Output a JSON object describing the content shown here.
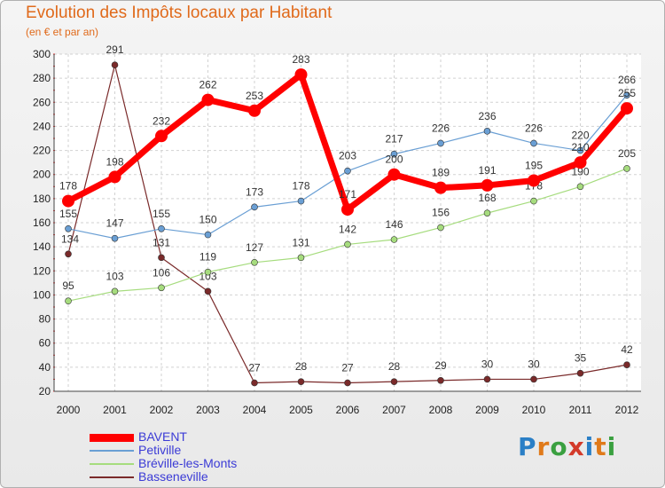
{
  "title": "Evolution des Impôts locaux par Habitant",
  "subtitle": "(en € et par an)",
  "logo": {
    "text": "Proxiti",
    "colors": [
      "#2a7fc6",
      "#e07a1a",
      "#3aa040",
      "#d33a2a",
      "#2a7fc6",
      "#e07a1a",
      "#3aa040"
    ]
  },
  "chart_data": {
    "type": "line",
    "title": "Evolution des Impôts locaux par Habitant",
    "subtitle": "(en € et par an)",
    "x": [
      "2000",
      "2001",
      "2002",
      "2003",
      "2004",
      "2005",
      "2006",
      "2007",
      "2008",
      "2009",
      "2010",
      "2011",
      "2012"
    ],
    "ylim": [
      20,
      300
    ],
    "yticks": [
      20,
      40,
      60,
      80,
      100,
      120,
      140,
      160,
      180,
      200,
      220,
      240,
      260,
      280,
      300
    ],
    "grid": true,
    "legend_position": "bottom-left",
    "series": [
      {
        "name": "BAVENT",
        "color": "#ff0000",
        "emphasis": true,
        "values": [
          178,
          198,
          232,
          262,
          253,
          283,
          171,
          200,
          189,
          191,
          195,
          210,
          255
        ]
      },
      {
        "name": "Petiville",
        "color": "#6a9fd4",
        "values": [
          155,
          147,
          155,
          150,
          173,
          178,
          203,
          217,
          226,
          236,
          226,
          220,
          266
        ]
      },
      {
        "name": "Bréville-les-Monts",
        "color": "#a6dc7e",
        "values": [
          95,
          103,
          106,
          119,
          127,
          131,
          142,
          146,
          156,
          168,
          178,
          190,
          205
        ]
      },
      {
        "name": "Basseneville",
        "color": "#7a2a2a",
        "values": [
          134,
          291,
          131,
          103,
          27,
          28,
          27,
          28,
          29,
          30,
          30,
          35,
          42
        ]
      }
    ]
  }
}
